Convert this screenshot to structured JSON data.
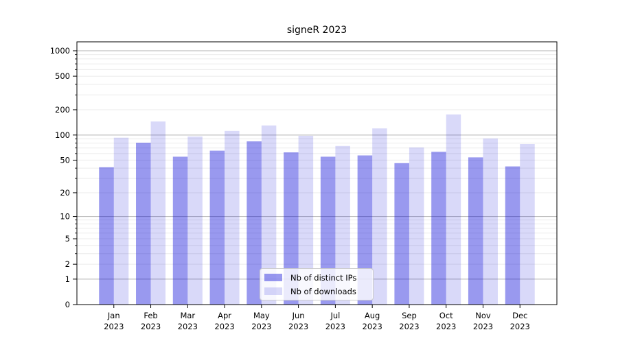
{
  "chart_data": {
    "type": "bar",
    "title": "signeR 2023",
    "categories": [
      "Jan",
      "Feb",
      "Mar",
      "Apr",
      "May",
      "Jun",
      "Jul",
      "Aug",
      "Sep",
      "Oct",
      "Nov",
      "Dec"
    ],
    "category_year": "2023",
    "series": [
      {
        "name": "Nb of distinct IPs",
        "color": "rgba(0,0,215,0.40)",
        "values": [
          41,
          81,
          55,
          65,
          84,
          62,
          55,
          57,
          46,
          63,
          54,
          42
        ]
      },
      {
        "name": "Nb of downloads",
        "color": "rgba(0,0,215,0.15)",
        "values": [
          93,
          145,
          96,
          112,
          130,
          98,
          74,
          120,
          71,
          176,
          91,
          78
        ]
      }
    ],
    "yscale": "log1p",
    "yticks": [
      0,
      1,
      2,
      5,
      10,
      20,
      50,
      100,
      200,
      500,
      1000
    ],
    "ytick_labels": [
      "0",
      "1",
      "2",
      "5",
      "10",
      "20",
      "50",
      "100",
      "200",
      "500",
      "1000"
    ],
    "grid_major_at": [
      1,
      10,
      100,
      1000
    ],
    "ylim": [
      0,
      1275
    ],
    "grid": "both",
    "legend_position": "lower center",
    "colors": {
      "grid_major": "#b3b3b3",
      "grid_minor": "#ebebeb",
      "axis": "#000000",
      "text": "#000000",
      "background": "#ffffff"
    }
  }
}
